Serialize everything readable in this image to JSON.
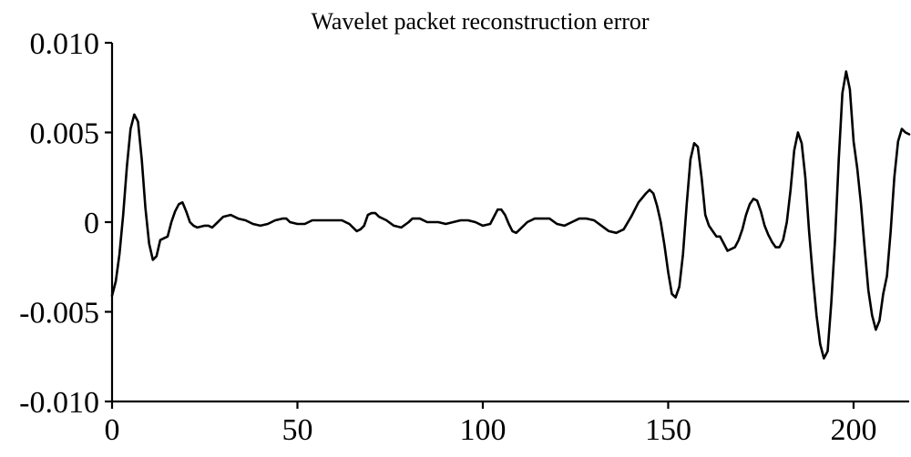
{
  "chart_data": {
    "type": "line",
    "title": "Wavelet packet reconstruction error",
    "xlabel": "",
    "ylabel": "",
    "xlim": [
      0,
      215
    ],
    "ylim": [
      -0.01,
      0.01
    ],
    "grid": false,
    "x_ticks": [
      {
        "value": 0,
        "label": "0"
      },
      {
        "value": 50,
        "label": "50"
      },
      {
        "value": 100,
        "label": "100"
      },
      {
        "value": 150,
        "label": "150"
      },
      {
        "value": 200,
        "label": "200"
      }
    ],
    "y_ticks": [
      {
        "value": 0.01,
        "label": "0.010"
      },
      {
        "value": 0.005,
        "label": "0.005"
      },
      {
        "value": 0,
        "label": "0"
      },
      {
        "value": -0.005,
        "label": "-0.005"
      },
      {
        "value": -0.01,
        "label": "-0.010"
      }
    ],
    "series": [
      {
        "color": "#000000",
        "points": [
          [
            0,
            -0.0041
          ],
          [
            1,
            -0.0033
          ],
          [
            2,
            -0.0018
          ],
          [
            3,
            0.0004
          ],
          [
            4,
            0.0031
          ],
          [
            5,
            0.0052
          ],
          [
            6,
            0.006
          ],
          [
            7,
            0.0056
          ],
          [
            8,
            0.0035
          ],
          [
            9,
            0.0008
          ],
          [
            10,
            -0.0012
          ],
          [
            11,
            -0.0021
          ],
          [
            12,
            -0.0019
          ],
          [
            13,
            -0.001
          ],
          [
            14,
            -0.0009
          ],
          [
            15,
            -0.0008
          ],
          [
            16,
            0.0
          ],
          [
            17,
            0.0006
          ],
          [
            18,
            0.001
          ],
          [
            19,
            0.0011
          ],
          [
            20,
            0.0006
          ],
          [
            21,
            0.0
          ],
          [
            22,
            -0.0002
          ],
          [
            23,
            -0.0003
          ],
          [
            25,
            -0.0002
          ],
          [
            26,
            -0.0002
          ],
          [
            27,
            -0.0003
          ],
          [
            28,
            -0.0001
          ],
          [
            30,
            0.0003
          ],
          [
            32,
            0.0004
          ],
          [
            34,
            0.0002
          ],
          [
            36,
            0.0001
          ],
          [
            38,
            -0.0001
          ],
          [
            40,
            -0.0002
          ],
          [
            42,
            -0.0001
          ],
          [
            44,
            0.0001
          ],
          [
            46,
            0.0002
          ],
          [
            47,
            0.0002
          ],
          [
            48,
            0.0
          ],
          [
            50,
            -0.0001
          ],
          [
            52,
            -0.0001
          ],
          [
            54,
            0.0001
          ],
          [
            56,
            0.0001
          ],
          [
            58,
            0.0001
          ],
          [
            60,
            0.0001
          ],
          [
            62,
            0.0001
          ],
          [
            64,
            -0.0001
          ],
          [
            66,
            -0.0005
          ],
          [
            67,
            -0.0004
          ],
          [
            68,
            -0.0002
          ],
          [
            69,
            0.0004
          ],
          [
            70,
            0.0005
          ],
          [
            71,
            0.0005
          ],
          [
            72,
            0.0003
          ],
          [
            74,
            0.0001
          ],
          [
            76,
            -0.0002
          ],
          [
            78,
            -0.0003
          ],
          [
            80,
            0.0
          ],
          [
            81,
            0.0002
          ],
          [
            83,
            0.0002
          ],
          [
            85,
            0.0
          ],
          [
            88,
            0.0
          ],
          [
            90,
            -0.0001
          ],
          [
            92,
            0.0
          ],
          [
            94,
            0.0001
          ],
          [
            96,
            0.0001
          ],
          [
            98,
            0.0
          ],
          [
            100,
            -0.0002
          ],
          [
            102,
            -0.0001
          ],
          [
            103,
            0.0003
          ],
          [
            104,
            0.0007
          ],
          [
            105,
            0.0007
          ],
          [
            106,
            0.0004
          ],
          [
            107,
            -0.0001
          ],
          [
            108,
            -0.0005
          ],
          [
            109,
            -0.0006
          ],
          [
            110,
            -0.0004
          ],
          [
            112,
            0.0
          ],
          [
            114,
            0.0002
          ],
          [
            116,
            0.0002
          ],
          [
            118,
            0.0002
          ],
          [
            120,
            -0.0001
          ],
          [
            122,
            -0.0002
          ],
          [
            124,
            0.0
          ],
          [
            126,
            0.0002
          ],
          [
            128,
            0.0002
          ],
          [
            130,
            0.0001
          ],
          [
            132,
            -0.0002
          ],
          [
            134,
            -0.0005
          ],
          [
            136,
            -0.0006
          ],
          [
            138,
            -0.0004
          ],
          [
            140,
            0.0003
          ],
          [
            142,
            0.0011
          ],
          [
            144,
            0.0016
          ],
          [
            145,
            0.0018
          ],
          [
            146,
            0.0016
          ],
          [
            147,
            0.0009
          ],
          [
            148,
            0.0
          ],
          [
            149,
            -0.0013
          ],
          [
            150,
            -0.0028
          ],
          [
            151,
            -0.004
          ],
          [
            152,
            -0.0042
          ],
          [
            153,
            -0.0036
          ],
          [
            154,
            -0.0018
          ],
          [
            155,
            0.001
          ],
          [
            156,
            0.0035
          ],
          [
            157,
            0.0044
          ],
          [
            158,
            0.0042
          ],
          [
            159,
            0.0025
          ],
          [
            160,
            0.0004
          ],
          [
            161,
            -0.0002
          ],
          [
            162,
            -0.0005
          ],
          [
            163,
            -0.0008
          ],
          [
            164,
            -0.0008
          ],
          [
            165,
            -0.0012
          ],
          [
            166,
            -0.0016
          ],
          [
            168,
            -0.0014
          ],
          [
            169,
            -0.001
          ],
          [
            170,
            -0.0004
          ],
          [
            171,
            0.0004
          ],
          [
            172,
            0.001
          ],
          [
            173,
            0.0013
          ],
          [
            174,
            0.0012
          ],
          [
            175,
            0.0006
          ],
          [
            176,
            -0.0002
          ],
          [
            177,
            -0.0007
          ],
          [
            178,
            -0.0011
          ],
          [
            179,
            -0.0014
          ],
          [
            180,
            -0.0014
          ],
          [
            181,
            -0.001
          ],
          [
            182,
            0.0
          ],
          [
            183,
            0.0018
          ],
          [
            184,
            0.004
          ],
          [
            185,
            0.005
          ],
          [
            186,
            0.0044
          ],
          [
            187,
            0.0025
          ],
          [
            188,
            -0.0005
          ],
          [
            189,
            -0.003
          ],
          [
            190,
            -0.0052
          ],
          [
            191,
            -0.0068
          ],
          [
            192,
            -0.0076
          ],
          [
            193,
            -0.0072
          ],
          [
            194,
            -0.0045
          ],
          [
            195,
            -0.001
          ],
          [
            196,
            0.0035
          ],
          [
            197,
            0.0072
          ],
          [
            198,
            0.0084
          ],
          [
            199,
            0.0074
          ],
          [
            200,
            0.0045
          ],
          [
            201,
            0.003
          ],
          [
            202,
            0.001
          ],
          [
            203,
            -0.0015
          ],
          [
            204,
            -0.0038
          ],
          [
            205,
            -0.0052
          ],
          [
            206,
            -0.006
          ],
          [
            207,
            -0.0055
          ],
          [
            208,
            -0.004
          ],
          [
            209,
            -0.003
          ],
          [
            210,
            -0.0005
          ],
          [
            211,
            0.0025
          ],
          [
            212,
            0.0045
          ],
          [
            213,
            0.0052
          ],
          [
            214,
            0.005
          ],
          [
            215,
            0.0049
          ]
        ]
      }
    ]
  }
}
